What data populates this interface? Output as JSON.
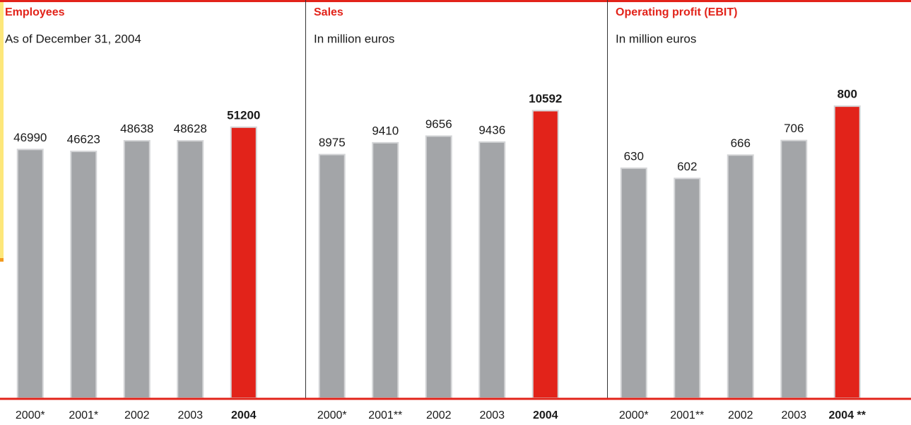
{
  "chart_data": [
    {
      "type": "bar",
      "title": "Employees",
      "subtitle": "As of December 31, 2004",
      "categories": [
        "2000*",
        "2001*",
        "2002",
        "2003",
        "2004"
      ],
      "values": [
        46990,
        46623,
        48638,
        48628,
        51200
      ],
      "colors": [
        "#a3a5a8",
        "#a3a5a8",
        "#a3a5a8",
        "#a3a5a8",
        "#e2231a"
      ],
      "highlight_index": 4,
      "ylim": [
        0,
        60000
      ]
    },
    {
      "type": "bar",
      "title": "Sales",
      "subtitle": "In million euros",
      "categories": [
        "2000*",
        "2001**",
        "2002",
        "2003",
        "2004"
      ],
      "values": [
        8975,
        9410,
        9656,
        9436,
        10592
      ],
      "colors": [
        "#a3a5a8",
        "#a3a5a8",
        "#a3a5a8",
        "#a3a5a8",
        "#e2231a"
      ],
      "highlight_index": 4,
      "ylim": [
        0,
        11700
      ]
    },
    {
      "type": "bar",
      "title": "Operating profit (EBIT)",
      "subtitle": "In million euros",
      "categories": [
        "2000*",
        "2001**",
        "2002",
        "2003",
        "2004 **"
      ],
      "values": [
        630,
        602,
        666,
        706,
        800
      ],
      "colors": [
        "#a3a5a8",
        "#a3a5a8",
        "#a3a5a8",
        "#a3a5a8",
        "#e2231a"
      ],
      "highlight_index": 4,
      "ylim": [
        0,
        870
      ]
    }
  ]
}
